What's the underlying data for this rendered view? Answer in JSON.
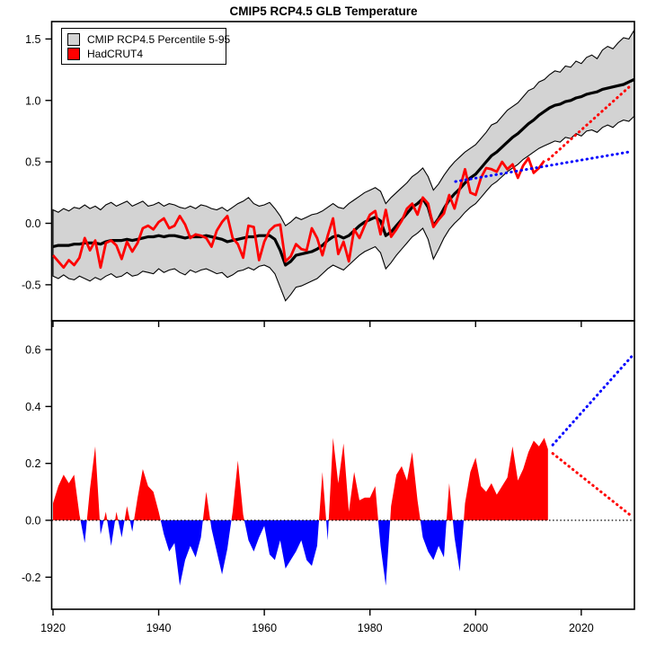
{
  "title": "CMIP5 RCP4.5 GLB Temperature",
  "legend": {
    "items": [
      {
        "label": "CMIP RCP4.5 Percentile 5-95",
        "color": "#d3d3d3"
      },
      {
        "label": "HadCRUT4",
        "color": "#ff0000"
      }
    ]
  },
  "colors": {
    "band_fill": "#d3d3d3",
    "band_edge": "#000000",
    "median": "#000000",
    "observations": "#ff0000",
    "positive_fill": "#ff0000",
    "negative_fill": "#0000ff",
    "trend_dotted": "#0000ff",
    "projection_dotted": "#ff0000",
    "zero_dotted": "#000000",
    "frame": "#000000"
  },
  "chart_data": {
    "type": "line",
    "title": "CMIP5 RCP4.5 GLB Temperature",
    "x_axis": {
      "ticks": [
        1920,
        1940,
        1960,
        1980,
        2000,
        2020
      ],
      "range": [
        1919.6,
        2030.4
      ]
    },
    "top_panel": {
      "description": "CMIP5 RCP4.5 ensemble 5-95 percentile band, ensemble median (black), HadCRUT4 observations (red), dotted projections to 2030",
      "y_ticks": [
        "1.5",
        "1.0",
        "0.5",
        "0.0",
        "-0.5"
      ],
      "y_tick_values": [
        1.5,
        1.0,
        0.5,
        0.0,
        -0.5
      ],
      "y_range": [
        -0.78,
        1.64
      ],
      "years_start": 1920,
      "cmip_median": [
        -0.19,
        -0.18,
        -0.18,
        -0.18,
        -0.17,
        -0.17,
        -0.16,
        -0.16,
        -0.16,
        -0.17,
        -0.15,
        -0.14,
        -0.14,
        -0.14,
        -0.13,
        -0.14,
        -0.13,
        -0.12,
        -0.11,
        -0.11,
        -0.1,
        -0.11,
        -0.1,
        -0.1,
        -0.11,
        -0.12,
        -0.11,
        -0.11,
        -0.11,
        -0.1,
        -0.11,
        -0.12,
        -0.13,
        -0.15,
        -0.14,
        -0.13,
        -0.12,
        -0.11,
        -0.11,
        -0.1,
        -0.1,
        -0.1,
        -0.13,
        -0.22,
        -0.34,
        -0.31,
        -0.26,
        -0.25,
        -0.24,
        -0.23,
        -0.21,
        -0.18,
        -0.14,
        -0.11,
        -0.1,
        -0.12,
        -0.1,
        -0.06,
        -0.02,
        0.01,
        0.03,
        0.05,
        0.02,
        -0.1,
        -0.07,
        -0.02,
        0.03,
        0.08,
        0.13,
        0.16,
        0.2,
        0.13,
        -0.02,
        0.04,
        0.12,
        0.19,
        0.24,
        0.28,
        0.33,
        0.37,
        0.4,
        0.45,
        0.5,
        0.55,
        0.58,
        0.62,
        0.66,
        0.7,
        0.73,
        0.77,
        0.81,
        0.84,
        0.88,
        0.91,
        0.94,
        0.96,
        0.97,
        0.99,
        1.0,
        1.02,
        1.03,
        1.05,
        1.06,
        1.07,
        1.09,
        1.1,
        1.11,
        1.12,
        1.13,
        1.15,
        1.17
      ],
      "band_upper": [
        0.11,
        0.09,
        0.12,
        0.1,
        0.13,
        0.12,
        0.15,
        0.12,
        0.14,
        0.11,
        0.15,
        0.17,
        0.14,
        0.16,
        0.18,
        0.14,
        0.16,
        0.18,
        0.14,
        0.15,
        0.17,
        0.14,
        0.16,
        0.15,
        0.13,
        0.12,
        0.14,
        0.12,
        0.15,
        0.14,
        0.12,
        0.11,
        0.13,
        0.1,
        0.13,
        0.16,
        0.18,
        0.21,
        0.16,
        0.14,
        0.15,
        0.17,
        0.12,
        0.06,
        -0.02,
        0.01,
        0.05,
        0.03,
        0.05,
        0.07,
        0.08,
        0.1,
        0.13,
        0.16,
        0.13,
        0.12,
        0.16,
        0.19,
        0.22,
        0.25,
        0.27,
        0.29,
        0.26,
        0.16,
        0.21,
        0.25,
        0.29,
        0.33,
        0.38,
        0.41,
        0.45,
        0.38,
        0.27,
        0.32,
        0.39,
        0.45,
        0.5,
        0.54,
        0.58,
        0.61,
        0.64,
        0.69,
        0.74,
        0.8,
        0.82,
        0.87,
        0.92,
        0.95,
        0.98,
        1.03,
        1.08,
        1.1,
        1.15,
        1.17,
        1.21,
        1.24,
        1.23,
        1.28,
        1.27,
        1.32,
        1.3,
        1.35,
        1.37,
        1.34,
        1.41,
        1.44,
        1.42,
        1.47,
        1.51,
        1.5,
        1.57
      ],
      "band_lower": [
        -0.43,
        -0.45,
        -0.42,
        -0.45,
        -0.46,
        -0.43,
        -0.45,
        -0.47,
        -0.44,
        -0.46,
        -0.43,
        -0.41,
        -0.44,
        -0.43,
        -0.4,
        -0.43,
        -0.42,
        -0.39,
        -0.4,
        -0.41,
        -0.37,
        -0.4,
        -0.38,
        -0.37,
        -0.4,
        -0.42,
        -0.38,
        -0.4,
        -0.38,
        -0.37,
        -0.39,
        -0.41,
        -0.4,
        -0.44,
        -0.42,
        -0.39,
        -0.38,
        -0.36,
        -0.38,
        -0.35,
        -0.34,
        -0.36,
        -0.41,
        -0.52,
        -0.63,
        -0.58,
        -0.52,
        -0.51,
        -0.49,
        -0.47,
        -0.45,
        -0.41,
        -0.37,
        -0.34,
        -0.36,
        -0.38,
        -0.34,
        -0.3,
        -0.26,
        -0.23,
        -0.21,
        -0.19,
        -0.24,
        -0.37,
        -0.32,
        -0.26,
        -0.21,
        -0.16,
        -0.11,
        -0.08,
        -0.04,
        -0.13,
        -0.29,
        -0.21,
        -0.12,
        -0.05,
        0.0,
        0.04,
        0.09,
        0.13,
        0.16,
        0.21,
        0.26,
        0.31,
        0.34,
        0.38,
        0.42,
        0.45,
        0.48,
        0.52,
        0.55,
        0.58,
        0.61,
        0.63,
        0.65,
        0.67,
        0.66,
        0.7,
        0.69,
        0.73,
        0.71,
        0.75,
        0.76,
        0.74,
        0.78,
        0.8,
        0.78,
        0.82,
        0.84,
        0.83,
        0.87
      ],
      "hadcrut4": [
        -0.26,
        -0.31,
        -0.36,
        -0.3,
        -0.34,
        -0.28,
        -0.12,
        -0.22,
        -0.14,
        -0.36,
        -0.16,
        -0.14,
        -0.18,
        -0.29,
        -0.15,
        -0.23,
        -0.16,
        -0.04,
        -0.02,
        -0.05,
        0.01,
        0.04,
        -0.04,
        -0.02,
        0.06,
        -0.01,
        -0.12,
        -0.09,
        -0.1,
        -0.12,
        -0.19,
        -0.06,
        0.01,
        0.06,
        -0.12,
        -0.17,
        -0.28,
        -0.02,
        -0.03,
        -0.3,
        -0.15,
        -0.06,
        -0.02,
        -0.01,
        -0.31,
        -0.27,
        -0.17,
        -0.21,
        -0.22,
        -0.04,
        -0.12,
        -0.26,
        -0.1,
        0.04,
        -0.25,
        -0.15,
        -0.31,
        -0.05,
        -0.12,
        -0.02,
        0.07,
        0.1,
        -0.09,
        0.11,
        -0.11,
        -0.05,
        0.02,
        0.12,
        0.16,
        0.07,
        0.21,
        0.16,
        -0.03,
        0.03,
        0.08,
        0.23,
        0.12,
        0.28,
        0.44,
        0.25,
        0.23,
        0.37,
        0.45,
        0.44,
        0.42,
        0.5,
        0.44,
        0.48,
        0.37,
        0.47,
        0.53,
        0.41,
        0.45,
        0.51
      ],
      "projections": [
        {
          "name": "median-continuation-dotted",
          "color": "#ff0000",
          "from": {
            "year": 2013.8,
            "value": 0.52
          },
          "to": {
            "year": 2029.6,
            "value": 1.13
          }
        },
        {
          "name": "recent-trend-dotted",
          "color": "#0000ff",
          "from": {
            "year": 1996.2,
            "value": 0.34
          },
          "to": {
            "year": 2029.6,
            "value": 0.585
          }
        }
      ]
    },
    "bottom_panel": {
      "description": "Red/blue filled annual difference series with dotted divergence wedge after 2014 and dotted zero line",
      "y_ticks": [
        "0.6",
        "0.4",
        "0.2",
        "0.0",
        "-0.2"
      ],
      "y_tick_values": [
        0.6,
        0.4,
        0.2,
        0.0,
        -0.2
      ],
      "y_range": [
        -0.31,
        0.7
      ],
      "years_start": 1920,
      "difference": [
        0.06,
        0.12,
        0.16,
        0.13,
        0.16,
        0.02,
        -0.08,
        0.11,
        0.26,
        -0.05,
        0.03,
        -0.09,
        0.03,
        -0.06,
        0.05,
        -0.04,
        0.08,
        0.18,
        0.12,
        0.1,
        0.03,
        -0.05,
        -0.11,
        -0.08,
        -0.23,
        -0.14,
        -0.09,
        -0.13,
        -0.06,
        0.1,
        -0.03,
        -0.11,
        -0.19,
        -0.1,
        0.03,
        0.21,
        0.02,
        -0.07,
        -0.11,
        -0.06,
        -0.02,
        -0.12,
        -0.14,
        -0.07,
        -0.17,
        -0.14,
        -0.11,
        -0.07,
        -0.14,
        -0.16,
        -0.09,
        0.17,
        -0.07,
        0.29,
        0.13,
        0.27,
        0.03,
        0.17,
        0.07,
        0.08,
        0.08,
        0.12,
        -0.09,
        -0.23,
        0.05,
        0.16,
        0.19,
        0.14,
        0.24,
        0.07,
        -0.06,
        -0.11,
        -0.14,
        -0.09,
        -0.13,
        0.13,
        -0.06,
        -0.18,
        0.06,
        0.17,
        0.22,
        0.12,
        0.1,
        0.13,
        0.09,
        0.12,
        0.15,
        0.26,
        0.14,
        0.18,
        0.24,
        0.28,
        0.26,
        0.29
      ],
      "series_end": {
        "year": 2013.7,
        "value": 0.25
      },
      "zero_line": 0.0,
      "projections": [
        {
          "name": "divergence-upper-dotted",
          "color": "#0000ff",
          "from": {
            "year": 2014.6,
            "value": 0.265
          },
          "to": {
            "year": 2029.5,
            "value": 0.575
          }
        },
        {
          "name": "divergence-lower-dotted",
          "color": "#ff0000",
          "from": {
            "year": 2014.6,
            "value": 0.235
          },
          "to": {
            "year": 2029.5,
            "value": 0.015
          }
        }
      ]
    }
  }
}
